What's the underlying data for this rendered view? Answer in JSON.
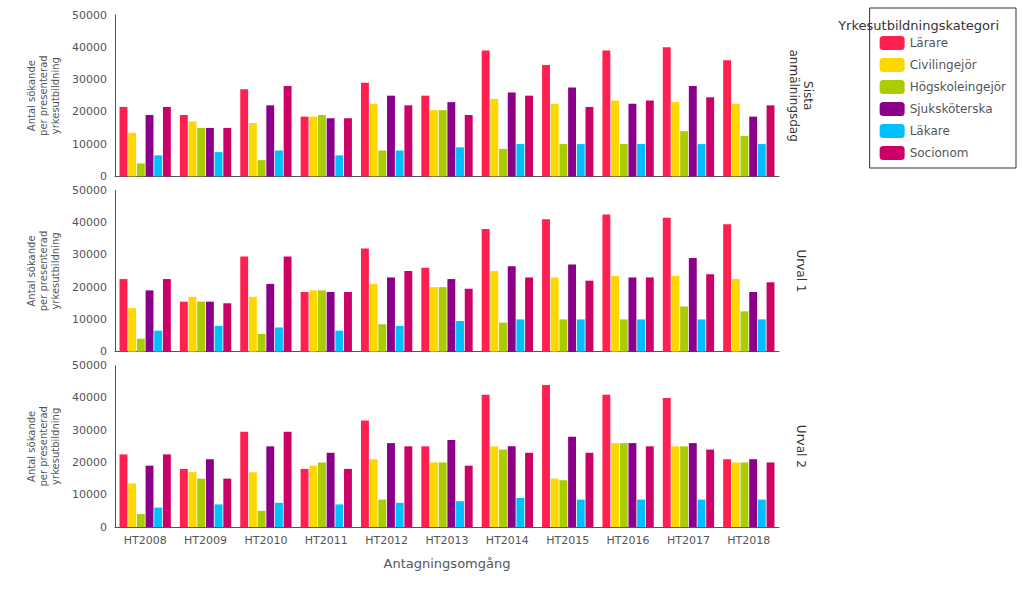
{
  "chart_data": [
    {
      "type": "bar",
      "title": "Sista\nanmälningsdag",
      "categories": [
        "HT2008",
        "HT2009",
        "HT2010",
        "HT2011",
        "HT2012",
        "HT2013",
        "HT2014",
        "HT2015",
        "HT2016",
        "HT2017",
        "HT2018"
      ],
      "series": [
        {
          "name": "Lärare",
          "color": "#FF2050",
          "values": [
            21500,
            19000,
            27000,
            18500,
            29000,
            25000,
            39000,
            34500,
            39000,
            40000,
            36000
          ]
        },
        {
          "name": "Civilingejör",
          "color": "#FFD700",
          "values": [
            13500,
            17000,
            16500,
            18500,
            22500,
            20500,
            24000,
            22500,
            23500,
            23000,
            22500
          ]
        },
        {
          "name": "Högskoleingejör",
          "color": "#AACC00",
          "values": [
            4000,
            15000,
            5000,
            19000,
            8000,
            20500,
            8500,
            10000,
            10000,
            14000,
            12500
          ]
        },
        {
          "name": "Sjuksköterska",
          "color": "#8B008B",
          "values": [
            19000,
            15000,
            22000,
            18000,
            25000,
            23000,
            26000,
            27500,
            22500,
            28000,
            18500
          ]
        },
        {
          "name": "Läkare",
          "color": "#00BFFF",
          "values": [
            6500,
            7500,
            8000,
            6500,
            8000,
            9000,
            10000,
            10000,
            10000,
            10000,
            10000
          ]
        },
        {
          "name": "Socionom",
          "color": "#CC0066",
          "values": [
            21500,
            15000,
            28000,
            18000,
            22000,
            19000,
            25000,
            21500,
            23500,
            24500,
            22000
          ]
        }
      ],
      "ylabel": "Antal sökande\nper presenterad\nyrkesutbildning",
      "ylim": [
        0,
        50000
      ],
      "yticks": [
        0,
        10000,
        20000,
        30000,
        40000,
        50000
      ],
      "grid": false,
      "tick_labels": "y",
      "legend": "upper right",
      "legend_title": "Yrkesutbildningskategori"
    },
    {
      "type": "bar",
      "title": "Urval 1",
      "categories": [
        "HT2008",
        "HT2009",
        "HT2010",
        "HT2011",
        "HT2012",
        "HT2013",
        "HT2014",
        "HT2015",
        "HT2016",
        "HT2017",
        "HT2018"
      ],
      "series": [
        {
          "name": "Lärare",
          "color": "#FF2050",
          "values": [
            22500,
            15500,
            29500,
            18500,
            32000,
            26000,
            38000,
            41000,
            42500,
            41500,
            39500
          ]
        },
        {
          "name": "Civilingejör",
          "color": "#FFD700",
          "values": [
            13500,
            17000,
            17000,
            19000,
            21000,
            20000,
            25000,
            23000,
            23500,
            23500,
            22500
          ]
        },
        {
          "name": "Högskoleingejör",
          "color": "#AACC00",
          "values": [
            4000,
            15500,
            5500,
            19000,
            8500,
            20000,
            9000,
            10000,
            10000,
            14000,
            12500
          ]
        },
        {
          "name": "Sjuksköterska",
          "color": "#8B008B",
          "values": [
            19000,
            15500,
            21000,
            18500,
            23000,
            22500,
            26500,
            27000,
            23000,
            29000,
            18500
          ]
        },
        {
          "name": "Läkare",
          "color": "#00BFFF",
          "values": [
            6500,
            8000,
            7500,
            6500,
            8000,
            9500,
            10000,
            10000,
            10000,
            10000,
            10000
          ]
        },
        {
          "name": "Socionom",
          "color": "#CC0066",
          "values": [
            22500,
            15000,
            29500,
            18500,
            25000,
            19500,
            23000,
            22000,
            23000,
            24000,
            21500
          ]
        }
      ],
      "ylabel": "Antal sökande\nper presenterad\nyrkesutbildning",
      "ylim": [
        0,
        50000
      ],
      "yticks": [
        0,
        10000,
        20000,
        30000,
        40000,
        50000
      ],
      "grid": false,
      "tick_labels": "y"
    },
    {
      "type": "bar",
      "title": "Urval 2",
      "categories": [
        "HT2008",
        "HT2009",
        "HT2010",
        "HT2011",
        "HT2012",
        "HT2013",
        "HT2014",
        "HT2015",
        "HT2016",
        "HT2017",
        "HT2018"
      ],
      "series": [
        {
          "name": "Lärare",
          "color": "#FF2050",
          "values": [
            22500,
            18000,
            29500,
            18000,
            33000,
            25000,
            41000,
            44000,
            41000,
            40000,
            21000
          ]
        },
        {
          "name": "Civilingejör",
          "color": "#FFD700",
          "values": [
            13500,
            17000,
            17000,
            19000,
            21000,
            20000,
            25000,
            15000,
            26000,
            25000,
            20000
          ]
        },
        {
          "name": "Högskoleingejör",
          "color": "#AACC00",
          "values": [
            4000,
            15000,
            5000,
            20000,
            8500,
            20000,
            24000,
            14500,
            26000,
            25000,
            20000
          ]
        },
        {
          "name": "Sjuksköterska",
          "color": "#8B008B",
          "values": [
            19000,
            21000,
            25000,
            23000,
            26000,
            27000,
            25000,
            28000,
            26000,
            26000,
            21000
          ]
        },
        {
          "name": "Läkare",
          "color": "#00BFFF",
          "values": [
            6000,
            7000,
            7500,
            7000,
            7500,
            8000,
            9000,
            8500,
            8500,
            8500,
            8500
          ]
        },
        {
          "name": "Socionom",
          "color": "#CC0066",
          "values": [
            22500,
            15000,
            29500,
            18000,
            25000,
            19000,
            23000,
            23000,
            25000,
            24000,
            20000
          ]
        }
      ],
      "ylabel": "Antal sökande\nper presenterad\nyrkesutbildning",
      "xlabel": "Antagningsomgång",
      "ylim": [
        0,
        50000
      ],
      "yticks": [
        0,
        10000,
        20000,
        30000,
        40000,
        50000
      ],
      "grid": false
    }
  ]
}
